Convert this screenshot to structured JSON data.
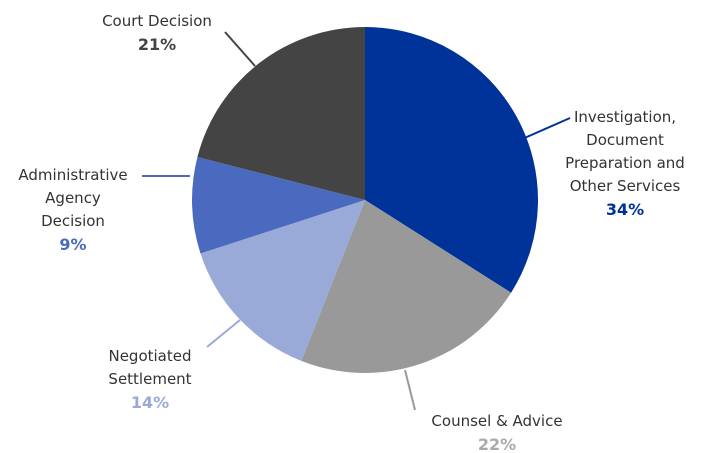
{
  "chart_data": {
    "type": "pie",
    "categories": [
      "Investigation, Document Preparation and Other Services",
      "Counsel & Advice",
      "Negotiated Settlement",
      "Administrative Agency Decision",
      "Court Decision"
    ],
    "values": [
      34,
      22,
      14,
      9,
      21
    ],
    "value_labels": [
      "34%",
      "22%",
      "14%",
      "9%",
      "21%"
    ],
    "colors": [
      "#003399",
      "#999999",
      "#9aaad8",
      "#4a6abf",
      "#444444"
    ]
  }
}
